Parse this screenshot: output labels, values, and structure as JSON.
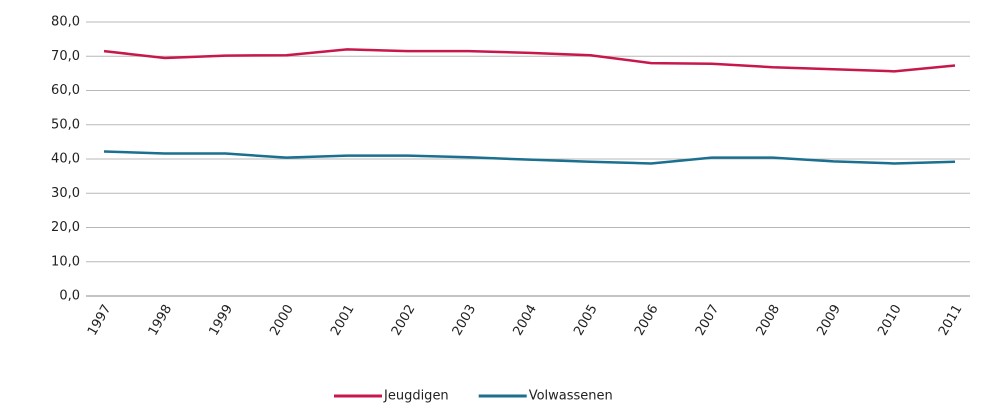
{
  "chart_data": {
    "type": "line",
    "categories": [
      "1997",
      "1998",
      "1999",
      "2000",
      "2001",
      "2002",
      "2003",
      "2004",
      "2005",
      "2006",
      "2007",
      "2008",
      "2009",
      "2010",
      "2011"
    ],
    "series": [
      {
        "name": "Jeugdigen",
        "color": "#c8174b",
        "values": [
          71.5,
          69.5,
          70.2,
          70.3,
          72.0,
          71.5,
          71.5,
          71.0,
          70.3,
          68.0,
          67.8,
          66.8,
          66.2,
          65.6,
          67.3
        ]
      },
      {
        "name": "Volwassenen",
        "color": "#1b6f8f",
        "values": [
          42.2,
          41.6,
          41.6,
          40.4,
          41.0,
          41.0,
          40.5,
          39.8,
          39.2,
          38.7,
          40.4,
          40.4,
          39.3,
          38.7,
          39.2
        ]
      }
    ],
    "ylim": [
      0,
      80
    ],
    "yticks": [
      {
        "value": 0,
        "label": "0,0"
      },
      {
        "value": 10,
        "label": "10,0"
      },
      {
        "value": 20,
        "label": "20,0"
      },
      {
        "value": 30,
        "label": "30,0"
      },
      {
        "value": 40,
        "label": "40,0"
      },
      {
        "value": 50,
        "label": "50,0"
      },
      {
        "value": 60,
        "label": "60,0"
      },
      {
        "value": 70,
        "label": "70,0"
      },
      {
        "value": 80,
        "label": "80,0"
      }
    ],
    "grid": true,
    "legend": "bottom"
  }
}
